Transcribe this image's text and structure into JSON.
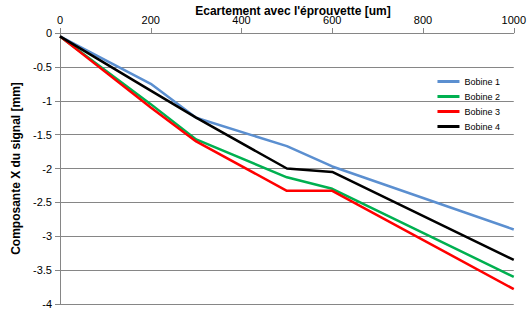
{
  "chart_data": {
    "type": "line",
    "title": "Ecartement avec l'éprouvette [um]",
    "y_label": "Composante X du signal [mm]",
    "x": [
      0,
      200,
      300,
      500,
      600,
      1000
    ],
    "series": [
      {
        "name": "Bobine 1",
        "color": "#5b8fd0",
        "values": [
          -0.05,
          -0.75,
          -1.25,
          -1.67,
          -1.97,
          -2.9
        ]
      },
      {
        "name": "Bobine 2",
        "color": "#00b050",
        "values": [
          -0.05,
          -1.05,
          -1.57,
          -2.13,
          -2.3,
          -3.6
        ]
      },
      {
        "name": "Bobine 3",
        "color": "#ff0000",
        "values": [
          -0.05,
          -1.1,
          -1.6,
          -2.33,
          -2.33,
          -3.78
        ]
      },
      {
        "name": "Bobine 4",
        "color": "#000000",
        "values": [
          -0.05,
          -0.85,
          -1.25,
          -2.0,
          -2.05,
          -3.35
        ]
      }
    ],
    "xlim": [
      0,
      1000
    ],
    "xticks": [
      0,
      200,
      400,
      600,
      800,
      1000
    ],
    "ylim": [
      -4,
      0
    ],
    "yticks": [
      -4,
      -3.5,
      -3,
      -2.5,
      -2,
      -1.5,
      -1,
      -0.5,
      0
    ],
    "grid": true,
    "legend": "right"
  }
}
